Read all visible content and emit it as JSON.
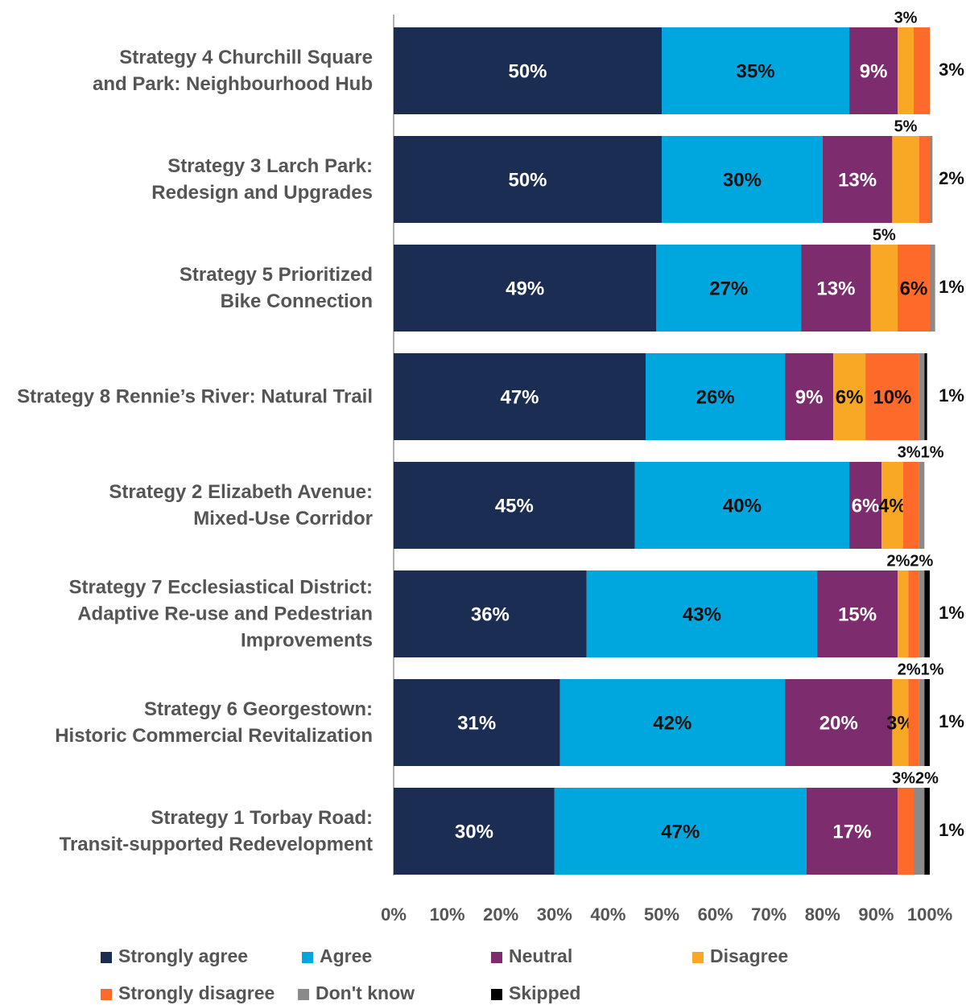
{
  "chart_data": {
    "type": "stacked-barh",
    "categories": [
      "Strategy 4 Churchill Square\nand Park: Neighbourhood Hub",
      "Strategy 3 Larch Park:\nRedesign and Upgrades",
      "Strategy 5 Prioritized\nBike Connection",
      "Strategy 8 Rennie’s River: Natural Trail",
      "Strategy 2 Elizabeth Avenue:\nMixed-Use Corridor",
      "Strategy 7 Ecclesiastical District:\nAdaptive Re-use and Pedestrian\nImprovements",
      "Strategy 6 Georgestown:\nHistoric Commercial Revitalization",
      "Strategy 1 Torbay Road:\nTransit-supported Redevelopment"
    ],
    "series": [
      {
        "name": "Strongly agree",
        "color": "#1b2d52",
        "values": [
          50,
          50,
          49,
          47,
          45,
          36,
          31,
          30
        ],
        "value_labels": [
          "50%",
          "50%",
          "49%",
          "47%",
          "45%",
          "36%",
          "31%",
          "30%"
        ]
      },
      {
        "name": "Agree",
        "color": "#00a7df",
        "values": [
          35,
          30,
          27,
          26,
          40,
          43,
          42,
          47
        ],
        "value_labels": [
          "35%",
          "30%",
          "27%",
          "26%",
          "40%",
          "43%",
          "42%",
          "47%"
        ]
      },
      {
        "name": "Neutral",
        "color": "#7d2c6d",
        "values": [
          9,
          13,
          13,
          9,
          6,
          15,
          20,
          17
        ],
        "value_labels": [
          "9%",
          "13%",
          "13%",
          "9%",
          "6%",
          "15%",
          "20%",
          "17%"
        ]
      },
      {
        "name": "Disagree",
        "color": "#f9a825",
        "values": [
          3,
          5,
          5,
          6,
          4,
          2,
          3,
          0
        ],
        "value_labels": [
          "3%",
          "5%",
          "5%",
          "6%",
          "4%",
          "2%",
          "3%",
          null
        ]
      },
      {
        "name": "Strongly disagree",
        "color": "#fd6a2a",
        "values": [
          3,
          2,
          6,
          10,
          3,
          2,
          2,
          3
        ],
        "value_labels": [
          "3%",
          "2%",
          "6%",
          "10%",
          "3%",
          "2%",
          "2%",
          "3%"
        ]
      },
      {
        "name": "Don't know",
        "color": "#8a8a8a",
        "values": [
          0,
          0.5,
          1,
          1,
          1,
          1,
          1,
          2
        ],
        "value_labels": [
          null,
          null,
          "1%",
          "1%",
          "1%",
          null,
          "1%",
          "2%"
        ]
      },
      {
        "name": "Skipped",
        "color": "#000000",
        "values": [
          0,
          0,
          0,
          0.5,
          0,
          1,
          1,
          1
        ],
        "value_labels": [
          null,
          null,
          null,
          null,
          null,
          "1%",
          "1%",
          "1%"
        ]
      }
    ],
    "xlim": [
      0,
      100
    ],
    "xticks": [
      {
        "value": 0,
        "label": "0%"
      },
      {
        "value": 10,
        "label": "10%"
      },
      {
        "value": 20,
        "label": "20%"
      },
      {
        "value": 30,
        "label": "30%"
      },
      {
        "value": 40,
        "label": "40%"
      },
      {
        "value": 50,
        "label": "50%"
      },
      {
        "value": 60,
        "label": "60%"
      },
      {
        "value": 70,
        "label": "70%"
      },
      {
        "value": 80,
        "label": "80%"
      },
      {
        "value": 90,
        "label": "90%"
      },
      {
        "value": 100,
        "label": "100%"
      }
    ]
  }
}
